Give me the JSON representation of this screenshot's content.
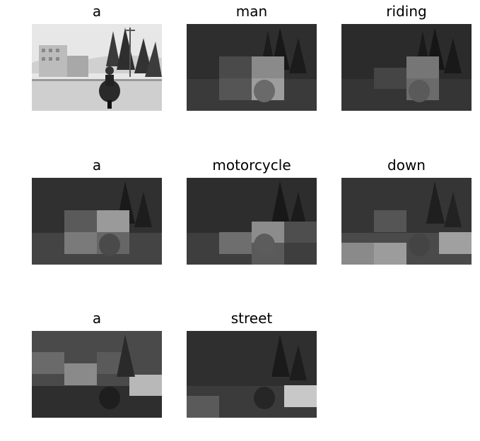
{
  "figure": {
    "panels": [
      {
        "word": "a",
        "view": "original"
      },
      {
        "word": "man",
        "view": "attention"
      },
      {
        "word": "riding",
        "view": "attention"
      },
      {
        "word": "a",
        "view": "attention"
      },
      {
        "word": "motorcycle",
        "view": "attention"
      },
      {
        "word": "down",
        "view": "attention"
      },
      {
        "word": "a",
        "view": "attention"
      },
      {
        "word": "street",
        "view": "attention"
      }
    ]
  }
}
